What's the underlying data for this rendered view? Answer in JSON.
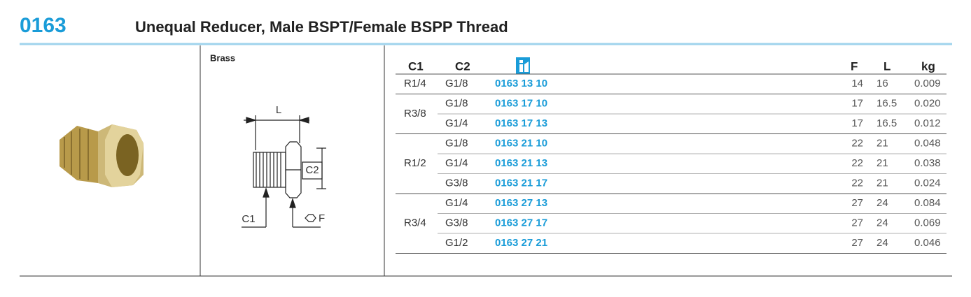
{
  "header": {
    "code": "0163",
    "title": "Unequal Reducer, Male BSPT/Female BSPP Thread"
  },
  "material": "Brass",
  "diagram": {
    "l": "L",
    "c2": "C2",
    "c1": "C1",
    "f": "F"
  },
  "table": {
    "columns": {
      "c1": "C1",
      "c2": "C2",
      "f": "F",
      "l": "L",
      "kg": "kg"
    },
    "groups": [
      {
        "c1": "R1/4",
        "rows": [
          {
            "c2": "G1/8",
            "code": "0163 13 10",
            "f": "14",
            "l": "16",
            "kg": "0.009"
          }
        ]
      },
      {
        "c1": "R3/8",
        "rows": [
          {
            "c2": "G1/8",
            "code": "0163 17 10",
            "f": "17",
            "l": "16.5",
            "kg": "0.020"
          },
          {
            "c2": "G1/4",
            "code": "0163 17 13",
            "f": "17",
            "l": "16.5",
            "kg": "0.012"
          }
        ]
      },
      {
        "c1": "R1/2",
        "rows": [
          {
            "c2": "G1/8",
            "code": "0163 21 10",
            "f": "22",
            "l": "21",
            "kg": "0.048"
          },
          {
            "c2": "G1/4",
            "code": "0163 21 13",
            "f": "22",
            "l": "21",
            "kg": "0.038"
          },
          {
            "c2": "G3/8",
            "code": "0163 21 17",
            "f": "22",
            "l": "21",
            "kg": "0.024"
          }
        ]
      },
      {
        "c1": "R3/4",
        "rows": [
          {
            "c2": "G1/4",
            "code": "0163 27 13",
            "f": "27",
            "l": "24",
            "kg": "0.084"
          },
          {
            "c2": "G3/8",
            "code": "0163 27 17",
            "f": "27",
            "l": "24",
            "kg": "0.069"
          },
          {
            "c2": "G1/2",
            "code": "0163 27 21",
            "f": "27",
            "l": "24",
            "kg": "0.046"
          }
        ]
      }
    ]
  }
}
